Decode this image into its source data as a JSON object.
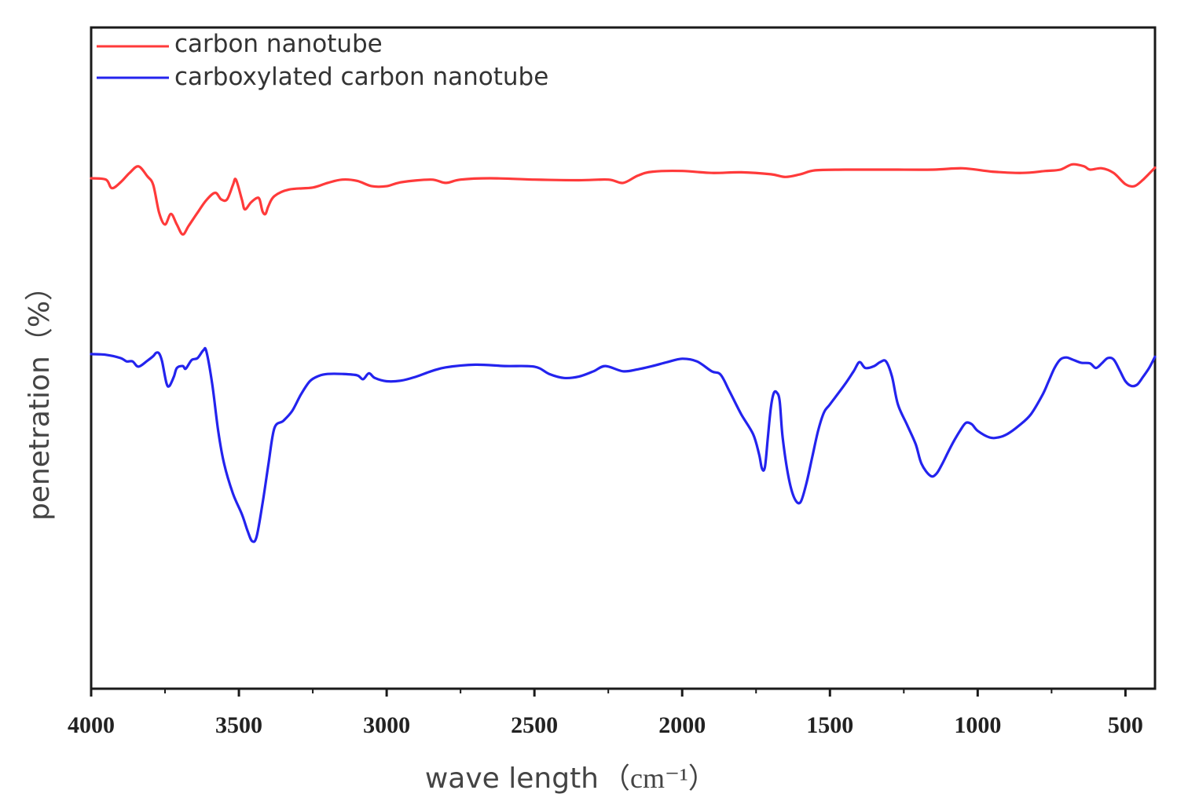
{
  "chart_data": {
    "type": "line",
    "title": "",
    "xlabel": "wave length",
    "xlabel_unit": "（cm⁻¹）",
    "ylabel": "penetration（%）",
    "xlim": [
      4000,
      400
    ],
    "ylim": [
      0,
      100
    ],
    "xticks": [
      4000,
      3500,
      3000,
      2500,
      2000,
      1500,
      1000,
      500
    ],
    "yticks": [],
    "grid": false,
    "legend_position": "top-left",
    "series": [
      {
        "name": "carbon nanotube",
        "color": "#ff3a3a",
        "points": [
          [
            4000,
            77.2
          ],
          [
            3950,
            77.0
          ],
          [
            3930,
            75.7
          ],
          [
            3900,
            76.6
          ],
          [
            3870,
            78.0
          ],
          [
            3840,
            79.0
          ],
          [
            3810,
            77.5
          ],
          [
            3790,
            76.2
          ],
          [
            3770,
            72.0
          ],
          [
            3750,
            70.2
          ],
          [
            3730,
            71.8
          ],
          [
            3710,
            70.2
          ],
          [
            3690,
            68.7
          ],
          [
            3670,
            70.0
          ],
          [
            3640,
            72.0
          ],
          [
            3610,
            73.9
          ],
          [
            3580,
            75.0
          ],
          [
            3560,
            74.0
          ],
          [
            3540,
            74.0
          ],
          [
            3520,
            76.2
          ],
          [
            3510,
            77.0
          ],
          [
            3490,
            74.0
          ],
          [
            3480,
            72.5
          ],
          [
            3460,
            73.5
          ],
          [
            3440,
            74.2
          ],
          [
            3430,
            74.0
          ],
          [
            3420,
            72.2
          ],
          [
            3410,
            71.8
          ],
          [
            3400,
            73.0
          ],
          [
            3380,
            74.5
          ],
          [
            3330,
            75.5
          ],
          [
            3250,
            75.8
          ],
          [
            3200,
            76.5
          ],
          [
            3150,
            77.0
          ],
          [
            3100,
            76.8
          ],
          [
            3050,
            76.0
          ],
          [
            3000,
            76.0
          ],
          [
            2950,
            76.6
          ],
          [
            2850,
            77.0
          ],
          [
            2800,
            76.5
          ],
          [
            2750,
            77.0
          ],
          [
            2650,
            77.2
          ],
          [
            2500,
            77.0
          ],
          [
            2350,
            76.9
          ],
          [
            2250,
            77.0
          ],
          [
            2200,
            76.5
          ],
          [
            2150,
            77.6
          ],
          [
            2100,
            78.2
          ],
          [
            2000,
            78.3
          ],
          [
            1900,
            78.0
          ],
          [
            1800,
            78.1
          ],
          [
            1700,
            77.8
          ],
          [
            1650,
            77.4
          ],
          [
            1600,
            77.8
          ],
          [
            1550,
            78.4
          ],
          [
            1450,
            78.5
          ],
          [
            1300,
            78.5
          ],
          [
            1150,
            78.5
          ],
          [
            1050,
            78.7
          ],
          [
            950,
            78.2
          ],
          [
            850,
            78.0
          ],
          [
            770,
            78.3
          ],
          [
            720,
            78.5
          ],
          [
            680,
            79.3
          ],
          [
            640,
            79.0
          ],
          [
            620,
            78.5
          ],
          [
            580,
            78.7
          ],
          [
            540,
            78.0
          ],
          [
            500,
            76.3
          ],
          [
            470,
            76.0
          ],
          [
            440,
            77.0
          ],
          [
            400,
            78.8
          ]
        ]
      },
      {
        "name": "carboxylated carbon nanotube",
        "color": "#2323ee",
        "points": [
          [
            4000,
            50.6
          ],
          [
            3950,
            50.5
          ],
          [
            3900,
            50.0
          ],
          [
            3880,
            49.5
          ],
          [
            3860,
            49.5
          ],
          [
            3840,
            48.7
          ],
          [
            3810,
            49.6
          ],
          [
            3790,
            50.3
          ],
          [
            3780,
            50.8
          ],
          [
            3770,
            50.7
          ],
          [
            3760,
            49.5
          ],
          [
            3745,
            46.2
          ],
          [
            3735,
            45.8
          ],
          [
            3720,
            47.2
          ],
          [
            3710,
            48.5
          ],
          [
            3690,
            48.8
          ],
          [
            3680,
            48.4
          ],
          [
            3660,
            49.7
          ],
          [
            3640,
            50.0
          ],
          [
            3620,
            51.2
          ],
          [
            3610,
            51.0
          ],
          [
            3590,
            46.0
          ],
          [
            3570,
            39.0
          ],
          [
            3550,
            34.0
          ],
          [
            3520,
            29.5
          ],
          [
            3490,
            26.4
          ],
          [
            3470,
            23.8
          ],
          [
            3455,
            22.3
          ],
          [
            3440,
            23.0
          ],
          [
            3420,
            28.0
          ],
          [
            3400,
            34.0
          ],
          [
            3380,
            39.4
          ],
          [
            3350,
            40.5
          ],
          [
            3320,
            42.0
          ],
          [
            3290,
            44.5
          ],
          [
            3260,
            46.5
          ],
          [
            3230,
            47.3
          ],
          [
            3200,
            47.6
          ],
          [
            3150,
            47.6
          ],
          [
            3100,
            47.4
          ],
          [
            3080,
            46.8
          ],
          [
            3060,
            47.7
          ],
          [
            3040,
            47.0
          ],
          [
            3000,
            46.5
          ],
          [
            2950,
            46.6
          ],
          [
            2900,
            47.2
          ],
          [
            2850,
            48.0
          ],
          [
            2800,
            48.6
          ],
          [
            2700,
            49.0
          ],
          [
            2600,
            48.8
          ],
          [
            2500,
            48.7
          ],
          [
            2450,
            47.6
          ],
          [
            2400,
            47.0
          ],
          [
            2350,
            47.2
          ],
          [
            2300,
            48.0
          ],
          [
            2260,
            48.8
          ],
          [
            2200,
            48.0
          ],
          [
            2150,
            48.3
          ],
          [
            2100,
            48.8
          ],
          [
            2050,
            49.4
          ],
          [
            2000,
            49.9
          ],
          [
            1950,
            49.5
          ],
          [
            1900,
            48.0
          ],
          [
            1870,
            47.5
          ],
          [
            1840,
            45.0
          ],
          [
            1800,
            41.5
          ],
          [
            1760,
            38.5
          ],
          [
            1740,
            35.5
          ],
          [
            1730,
            33.3
          ],
          [
            1720,
            33.5
          ],
          [
            1710,
            38.0
          ],
          [
            1700,
            42.5
          ],
          [
            1690,
            44.7
          ],
          [
            1680,
            44.8
          ],
          [
            1670,
            43.5
          ],
          [
            1660,
            38.0
          ],
          [
            1640,
            32.0
          ],
          [
            1620,
            28.8
          ],
          [
            1600,
            28.2
          ],
          [
            1580,
            31.0
          ],
          [
            1560,
            35.0
          ],
          [
            1540,
            39.0
          ],
          [
            1520,
            41.8
          ],
          [
            1500,
            43.0
          ],
          [
            1450,
            46.0
          ],
          [
            1420,
            48.0
          ],
          [
            1400,
            49.4
          ],
          [
            1380,
            48.5
          ],
          [
            1350,
            48.8
          ],
          [
            1330,
            49.4
          ],
          [
            1310,
            49.5
          ],
          [
            1290,
            47.2
          ],
          [
            1270,
            43.0
          ],
          [
            1240,
            40.0
          ],
          [
            1210,
            37.0
          ],
          [
            1190,
            34.0
          ],
          [
            1160,
            32.2
          ],
          [
            1140,
            32.5
          ],
          [
            1120,
            34.0
          ],
          [
            1100,
            35.8
          ],
          [
            1080,
            37.5
          ],
          [
            1060,
            39.0
          ],
          [
            1040,
            40.2
          ],
          [
            1020,
            40.0
          ],
          [
            1000,
            39.0
          ],
          [
            960,
            38.0
          ],
          [
            930,
            38.0
          ],
          [
            900,
            38.5
          ],
          [
            860,
            39.8
          ],
          [
            820,
            41.5
          ],
          [
            780,
            44.5
          ],
          [
            760,
            46.5
          ],
          [
            740,
            48.5
          ],
          [
            720,
            49.8
          ],
          [
            700,
            50.1
          ],
          [
            680,
            49.8
          ],
          [
            650,
            49.3
          ],
          [
            620,
            49.2
          ],
          [
            600,
            48.5
          ],
          [
            580,
            49.2
          ],
          [
            560,
            50.0
          ],
          [
            540,
            49.8
          ],
          [
            520,
            48.2
          ],
          [
            500,
            46.5
          ],
          [
            480,
            45.8
          ],
          [
            460,
            46.0
          ],
          [
            440,
            47.2
          ],
          [
            420,
            48.5
          ],
          [
            400,
            50.2
          ]
        ]
      }
    ]
  }
}
